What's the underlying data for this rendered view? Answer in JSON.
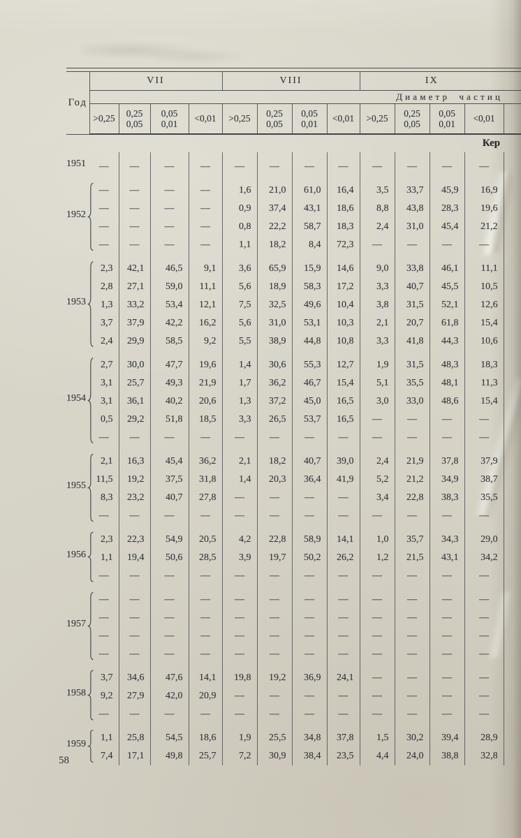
{
  "page": {
    "number": "58"
  },
  "table": {
    "year_header": "Год",
    "group_headers": [
      "VII",
      "VIII",
      "IX"
    ],
    "diameter_label": "Диаметр частиц",
    "subcolumns": [
      ">0,25",
      "0,25\n0,05",
      "0,05\n0,01",
      "<0,01"
    ],
    "corner_note": "Кер",
    "groups": [
      {
        "year": "1951",
        "brace": false,
        "rows": [
          [
            "—",
            "—",
            "—",
            "—",
            "—",
            "—",
            "—",
            "—",
            "—",
            "—",
            "—",
            "—"
          ]
        ]
      },
      {
        "year": "1952",
        "brace": true,
        "rows": [
          [
            "—",
            "—",
            "—",
            "—",
            "1,6",
            "21,0",
            "61,0",
            "16,4",
            "3,5",
            "33,7",
            "45,9",
            "16,9"
          ],
          [
            "—",
            "—",
            "—",
            "—",
            "0,9",
            "37,4",
            "43,1",
            "18,6",
            "8,8",
            "43,8",
            "28,3",
            "19,6"
          ],
          [
            "—",
            "—",
            "—",
            "—",
            "0,8",
            "22,2",
            "58,7",
            "18,3",
            "2,4",
            "31,0",
            "45,4",
            "21,2"
          ],
          [
            "—",
            "—",
            "—",
            "—",
            "1,1",
            "18,2",
            "8,4",
            "72,3",
            "—",
            "—",
            "—",
            "—"
          ]
        ]
      },
      {
        "year": "1953",
        "brace": true,
        "rows": [
          [
            "2,3",
            "42,1",
            "46,5",
            "9,1",
            "3,6",
            "65,9",
            "15,9",
            "14,6",
            "9,0",
            "33,8",
            "46,1",
            "11,1"
          ],
          [
            "2,8",
            "27,1",
            "59,0",
            "11,1",
            "5,6",
            "18,9",
            "58,3",
            "17,2",
            "3,3",
            "40,7",
            "45,5",
            "10,5"
          ],
          [
            "1,3",
            "33,2",
            "53,4",
            "12,1",
            "7,5",
            "32,5",
            "49,6",
            "10,4",
            "3,8",
            "31,5",
            "52,1",
            "12,6"
          ],
          [
            "3,7",
            "37,9",
            "42,2",
            "16,2",
            "5,6",
            "31,0",
            "53,1",
            "10,3",
            "2,1",
            "20,7",
            "61,8",
            "15,4"
          ],
          [
            "2,4",
            "29,9",
            "58,5",
            "9,2",
            "5,5",
            "38,9",
            "44,8",
            "10,8",
            "3,3",
            "41,8",
            "44,3",
            "10,6"
          ]
        ]
      },
      {
        "year": "1954",
        "brace": true,
        "rows": [
          [
            "2,7",
            "30,0",
            "47,7",
            "19,6",
            "1,4",
            "30,6",
            "55,3",
            "12,7",
            "1,9",
            "31,5",
            "48,3",
            "18,3"
          ],
          [
            "3,1",
            "25,7",
            "49,3",
            "21,9",
            "1,7",
            "36,2",
            "46,7",
            "15,4",
            "5,1",
            "35,5",
            "48,1",
            "11,3"
          ],
          [
            "3,1",
            "36,1",
            "40,2",
            "20,6",
            "1,3",
            "37,2",
            "45,0",
            "16,5",
            "3,0",
            "33,0",
            "48,6",
            "15,4"
          ],
          [
            "0,5",
            "29,2",
            "51,8",
            "18,5",
            "3,3",
            "26,5",
            "53,7",
            "16,5",
            "—",
            "—",
            "—",
            "—"
          ],
          [
            "—",
            "—",
            "—",
            "—",
            "—",
            "—",
            "—",
            "—",
            "—",
            "—",
            "—",
            "—"
          ]
        ]
      },
      {
        "year": "1955",
        "brace": true,
        "rows": [
          [
            "2,1",
            "16,3",
            "45,4",
            "36,2",
            "2,1",
            "18,2",
            "40,7",
            "39,0",
            "2,4",
            "21,9",
            "37,8",
            "37,9"
          ],
          [
            "11,5",
            "19,2",
            "37,5",
            "31,8",
            "1,4",
            "20,3",
            "36,4",
            "41,9",
            "5,2",
            "21,2",
            "34,9",
            "38,7"
          ],
          [
            "8,3",
            "23,2",
            "40,7",
            "27,8",
            "—",
            "—",
            "—",
            "—",
            "3,4",
            "22,8",
            "38,3",
            "35,5"
          ],
          [
            "—",
            "—",
            "—",
            "—",
            "—",
            "—",
            "—",
            "—",
            "—",
            "—",
            "—",
            "—"
          ]
        ]
      },
      {
        "year": "1956",
        "brace": true,
        "rows": [
          [
            "2,3",
            "22,3",
            "54,9",
            "20,5",
            "4,2",
            "22,8",
            "58,9",
            "14,1",
            "1,0",
            "35,7",
            "34,3",
            "29,0"
          ],
          [
            "1,1",
            "19,4",
            "50,6",
            "28,5",
            "3,9",
            "19,7",
            "50,2",
            "26,2",
            "1,2",
            "21,5",
            "43,1",
            "34,2"
          ],
          [
            "—",
            "—",
            "—",
            "—",
            "—",
            "—",
            "—",
            "—",
            "—",
            "—",
            "—",
            "—"
          ]
        ]
      },
      {
        "year": "1957",
        "brace": true,
        "rows": [
          [
            "—",
            "—",
            "—",
            "—",
            "—",
            "—",
            "—",
            "—",
            "—",
            "—",
            "—",
            "—"
          ],
          [
            "—",
            "—",
            "—",
            "—",
            "—",
            "—",
            "—",
            "—",
            "—",
            "—",
            "—",
            "—"
          ],
          [
            "—",
            "—",
            "—",
            "—",
            "—",
            "—",
            "—",
            "—",
            "—",
            "—",
            "—",
            "—"
          ],
          [
            "—",
            "—",
            "—",
            "—",
            "—",
            "—",
            "—",
            "—",
            "—",
            "—",
            "—",
            "—"
          ]
        ]
      },
      {
        "year": "1958",
        "brace": true,
        "rows": [
          [
            "3,7",
            "34,6",
            "47,6",
            "14,1",
            "19,8",
            "19,2",
            "36,9",
            "24,1",
            "—",
            "—",
            "—",
            "—"
          ],
          [
            "9,2",
            "27,9",
            "42,0",
            "20,9",
            "—",
            "—",
            "—",
            "—",
            "—",
            "—",
            "—",
            "—"
          ],
          [
            "—",
            "—",
            "—",
            "—",
            "—",
            "—",
            "—",
            "—",
            "—",
            "—",
            "—",
            "—"
          ]
        ]
      },
      {
        "year": "1959",
        "brace": true,
        "rows": [
          [
            "1,1",
            "25,8",
            "54,5",
            "18,6",
            "1,9",
            "25,5",
            "34,8",
            "37,8",
            "1,5",
            "30,2",
            "39,4",
            "28,9"
          ],
          [
            "7,4",
            "17,1",
            "49,8",
            "25,7",
            "7,2",
            "30,9",
            "38,4",
            "23,5",
            "4,4",
            "24,0",
            "38,8",
            "32,8"
          ]
        ]
      }
    ]
  }
}
